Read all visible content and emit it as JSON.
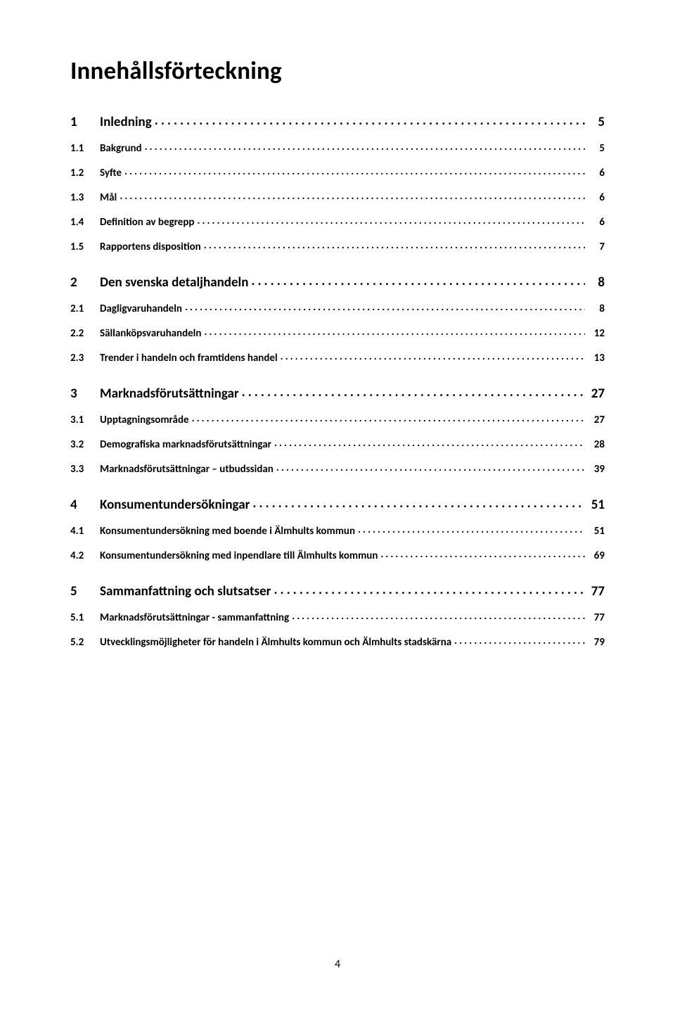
{
  "title": "Innehållsförteckning",
  "page_number": "4",
  "toc": [
    {
      "level": 1,
      "num": "1",
      "label": "Inledning",
      "page": "5"
    },
    {
      "level": 2,
      "num": "1.1",
      "label": "Bakgrund",
      "page": "5"
    },
    {
      "level": 2,
      "num": "1.2",
      "label": "Syfte",
      "page": "6"
    },
    {
      "level": 2,
      "num": "1.3",
      "label": "Mål",
      "page": "6"
    },
    {
      "level": 2,
      "num": "1.4",
      "label": "Definition av begrepp",
      "page": "6"
    },
    {
      "level": 2,
      "num": "1.5",
      "label": "Rapportens disposition",
      "page": "7"
    },
    {
      "level": 1,
      "num": "2",
      "label": "Den svenska detaljhandeln",
      "page": "8"
    },
    {
      "level": 2,
      "num": "2.1",
      "label": "Dagligvaruhandeln",
      "page": "8"
    },
    {
      "level": 2,
      "num": "2.2",
      "label": "Sällanköpsvaruhandeln",
      "page": "12"
    },
    {
      "level": 2,
      "num": "2.3",
      "label": "Trender i handeln och framtidens handel",
      "page": "13"
    },
    {
      "level": 1,
      "num": "3",
      "label": "Marknadsförutsättningar",
      "page": "27"
    },
    {
      "level": 2,
      "num": "3.1",
      "label": "Upptagningsområde",
      "page": "27"
    },
    {
      "level": 2,
      "num": "3.2",
      "label": "Demografiska marknadsförutsättningar",
      "page": "28"
    },
    {
      "level": 2,
      "num": "3.3",
      "label": "Marknadsförutsättningar – utbudssidan",
      "page": "39"
    },
    {
      "level": 1,
      "num": "4",
      "label": "Konsumentundersökningar",
      "page": "51"
    },
    {
      "level": 2,
      "num": "4.1",
      "label": "Konsumentundersökning med boende i Älmhults kommun",
      "page": "51"
    },
    {
      "level": 2,
      "num": "4.2",
      "label": "Konsumentundersökning med inpendlare till Älmhults kommun",
      "page": "69"
    },
    {
      "level": 1,
      "num": "5",
      "label": "Sammanfattning och slutsatser",
      "page": "77"
    },
    {
      "level": 2,
      "num": "5.1",
      "label": "Marknadsförutsättningar - sammanfattning",
      "page": "77"
    },
    {
      "level": 2,
      "num": "5.2",
      "label": "Utvecklingsmöjligheter för handeln i Älmhults kommun och Älmhults stadskärna",
      "page": "79"
    }
  ]
}
